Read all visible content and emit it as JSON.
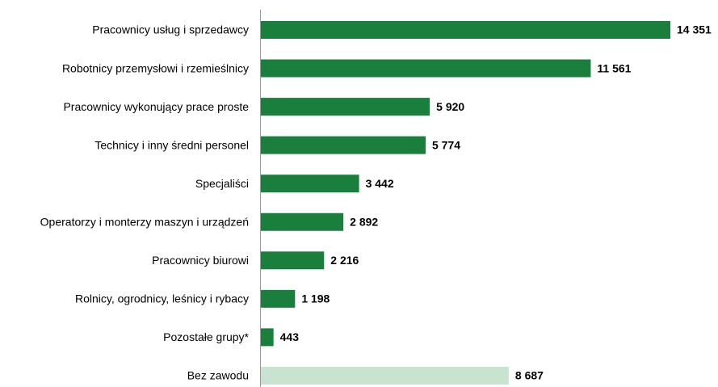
{
  "chart_data": {
    "type": "hbar",
    "categories": [
      "Pracownicy usług i sprzedawcy",
      "Robotnicy przemysłowi i rzemieślnicy",
      "Pracownicy wykonujący prace proste",
      "Technicy i inny średni personel",
      "Specjaliści",
      "Operatorzy i monterzy maszyn i urządzeń",
      "Pracownicy biurowi",
      "Rolnicy, ogrodnicy, leśnicy i rybacy",
      "Pozostałe grupy*",
      "Bez zawodu"
    ],
    "values": [
      14351,
      11561,
      5920,
      5774,
      3442,
      2892,
      2216,
      1198,
      443,
      8687
    ],
    "value_labels": [
      "14 351",
      "11 561",
      "5 920",
      "5 774",
      "3 442",
      "2 892",
      "2 216",
      "1 198",
      "443",
      "8 687"
    ],
    "colors": [
      "#1a7f3c",
      "#1a7f3c",
      "#1a7f3c",
      "#1a7f3c",
      "#1a7f3c",
      "#1a7f3c",
      "#1a7f3c",
      "#1a7f3c",
      "#1a7f3c",
      "#c8e3d0"
    ]
  }
}
